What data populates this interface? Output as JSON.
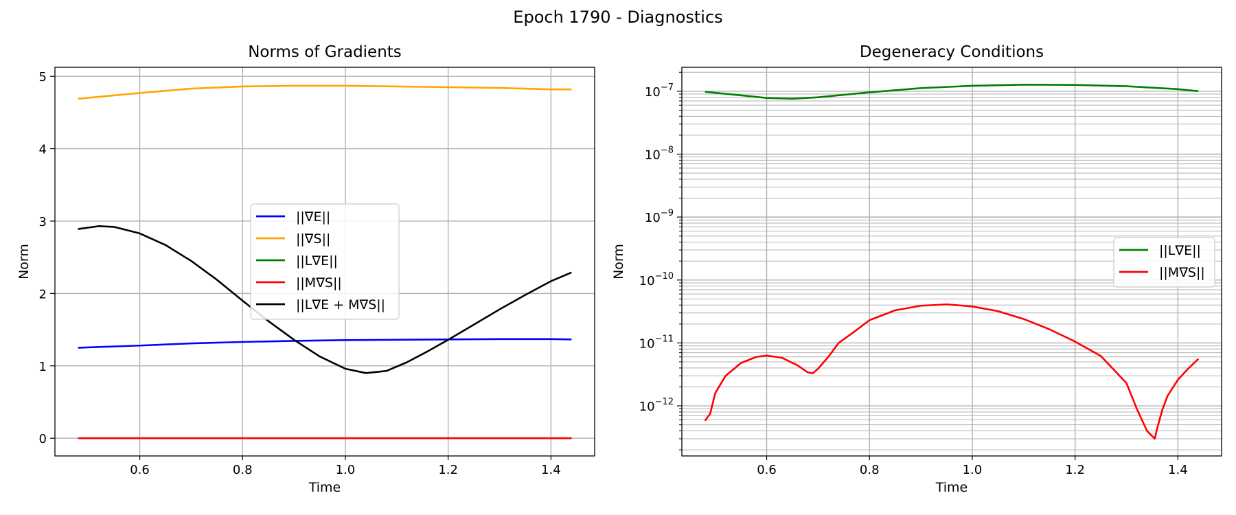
{
  "figure_title": "Epoch 1790 - Diagnostics",
  "colors": {
    "blue": "#0000ff",
    "orange": "#ffa500",
    "green": "#008000",
    "red": "#ff0000",
    "black": "#000000",
    "grid": "#b0b0b0"
  },
  "chart_data": [
    {
      "type": "line",
      "title": "Norms of Gradients",
      "xlabel": "Time",
      "ylabel": "Norm",
      "xlim": [
        0.435,
        1.485
      ],
      "ylim": [
        -0.245,
        5.125
      ],
      "xticks": [
        0.6,
        0.8,
        1.0,
        1.2,
        1.4
      ],
      "xtick_labels": [
        "0.6",
        "0.8",
        "1.0",
        "1.2",
        "1.4"
      ],
      "yticks": [
        0,
        1,
        2,
        3,
        4,
        5
      ],
      "ytick_labels": [
        "0",
        "1",
        "2",
        "3",
        "4",
        "5"
      ],
      "grid": true,
      "legend_position": "center",
      "series": [
        {
          "name": "||∇E||",
          "color": "#0000ff",
          "x": [
            0.48,
            0.6,
            0.7,
            0.8,
            0.9,
            1.0,
            1.1,
            1.2,
            1.3,
            1.4,
            1.44
          ],
          "y": [
            1.25,
            1.28,
            1.31,
            1.33,
            1.345,
            1.355,
            1.36,
            1.365,
            1.37,
            1.37,
            1.365
          ]
        },
        {
          "name": "||∇S||",
          "color": "#ffa500",
          "x": [
            0.48,
            0.6,
            0.7,
            0.8,
            0.9,
            1.0,
            1.1,
            1.2,
            1.3,
            1.4,
            1.44
          ],
          "y": [
            4.69,
            4.77,
            4.83,
            4.86,
            4.87,
            4.87,
            4.86,
            4.85,
            4.84,
            4.82,
            4.82
          ]
        },
        {
          "name": "||L∇E||",
          "color": "#008000",
          "x": [
            0.48,
            1.44
          ],
          "y": [
            0.0,
            0.0
          ]
        },
        {
          "name": "||M∇S||",
          "color": "#ff0000",
          "x": [
            0.48,
            1.44
          ],
          "y": [
            0.0,
            0.0
          ]
        },
        {
          "name": "||L∇E + M∇S||",
          "color": "#000000",
          "x": [
            0.48,
            0.52,
            0.55,
            0.6,
            0.65,
            0.7,
            0.75,
            0.8,
            0.85,
            0.9,
            0.95,
            1.0,
            1.04,
            1.08,
            1.12,
            1.16,
            1.2,
            1.25,
            1.3,
            1.35,
            1.4,
            1.44
          ],
          "y": [
            2.89,
            2.93,
            2.92,
            2.83,
            2.67,
            2.45,
            2.19,
            1.9,
            1.62,
            1.36,
            1.13,
            0.96,
            0.9,
            0.93,
            1.05,
            1.2,
            1.36,
            1.57,
            1.78,
            1.98,
            2.17,
            2.29
          ]
        }
      ]
    },
    {
      "type": "line",
      "title": "Degeneracy Conditions",
      "xlabel": "Time",
      "ylabel": "Norm",
      "yscale": "log",
      "xlim": [
        0.435,
        1.485
      ],
      "ylim": [
        1.6e-13,
        2.4e-07
      ],
      "xticks": [
        0.6,
        0.8,
        1.0,
        1.2,
        1.4
      ],
      "xtick_labels": [
        "0.6",
        "0.8",
        "1.0",
        "1.2",
        "1.4"
      ],
      "yticks": [
        1e-12,
        1e-11,
        1e-10,
        1e-09,
        1e-08,
        1e-07
      ],
      "ytick_bases": [
        "10",
        "10",
        "10",
        "10",
        "10",
        "10"
      ],
      "ytick_exponents": [
        "−12",
        "−11",
        "−10",
        "−9",
        "−8",
        "−7"
      ],
      "grid": true,
      "legend_position": "center right",
      "series": [
        {
          "name": "||L∇E||",
          "color": "#008000",
          "x": [
            0.48,
            0.55,
            0.6,
            0.65,
            0.7,
            0.8,
            0.9,
            1.0,
            1.1,
            1.2,
            1.3,
            1.4,
            1.44
          ],
          "y": [
            9.8e-08,
            8.6e-08,
            7.8e-08,
            7.6e-08,
            8e-08,
            9.6e-08,
            1.12e-07,
            1.22e-07,
            1.27e-07,
            1.26e-07,
            1.2e-07,
            1.08e-07,
            1e-07
          ]
        },
        {
          "name": "||M∇S||",
          "color": "#ff0000",
          "x": [
            0.48,
            0.49,
            0.5,
            0.52,
            0.55,
            0.58,
            0.6,
            0.63,
            0.66,
            0.68,
            0.69,
            0.7,
            0.72,
            0.74,
            0.77,
            0.8,
            0.85,
            0.9,
            0.95,
            1.0,
            1.05,
            1.1,
            1.15,
            1.2,
            1.25,
            1.3,
            1.32,
            1.34,
            1.355,
            1.36,
            1.37,
            1.38,
            1.4,
            1.42,
            1.44
          ],
          "y": [
            5.8e-13,
            7.5e-13,
            1.6e-12,
            3e-12,
            4.8e-12,
            6e-12,
            6.3e-12,
            5.8e-12,
            4.4e-12,
            3.4e-12,
            3.3e-12,
            3.9e-12,
            6e-12,
            1e-11,
            1.5e-11,
            2.3e-11,
            3.3e-11,
            3.9e-11,
            4.1e-11,
            3.8e-11,
            3.2e-11,
            2.4e-11,
            1.65e-11,
            1.05e-11,
            6.2e-12,
            2.3e-12,
            9e-13,
            4e-13,
            3e-13,
            4.5e-13,
            8.8e-13,
            1.45e-12,
            2.6e-12,
            3.9e-12,
            5.6e-12
          ]
        }
      ]
    }
  ]
}
